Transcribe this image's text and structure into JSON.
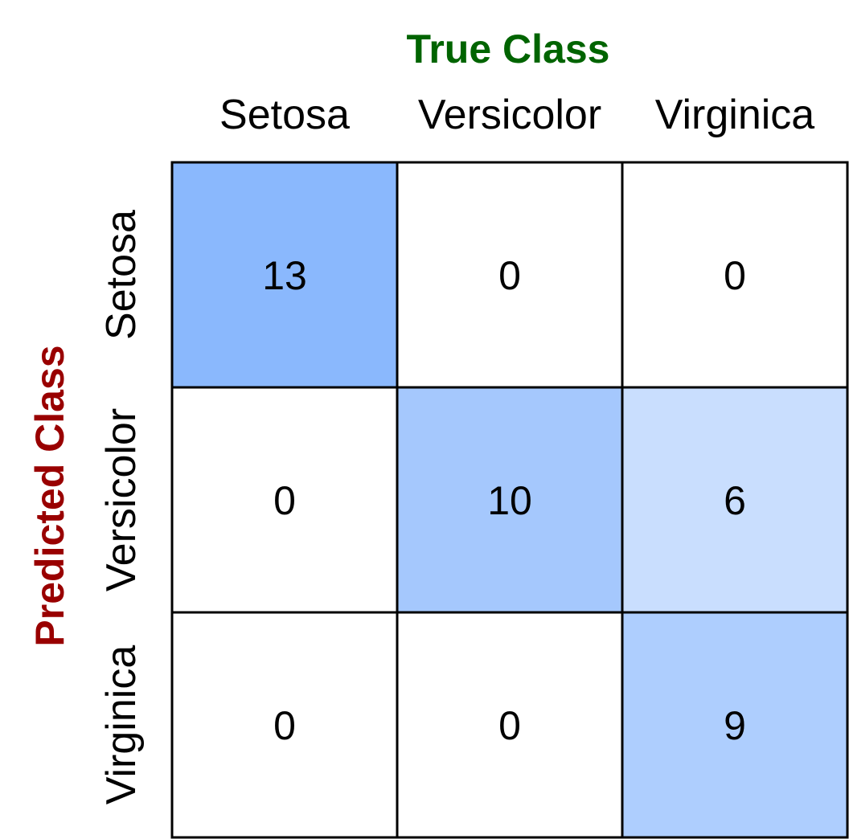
{
  "chart_data": {
    "type": "heatmap",
    "title": "",
    "xlabel": "True Class",
    "ylabel": "Predicted Class",
    "x_categories": [
      "Setosa",
      "Versicolor",
      "Virginica"
    ],
    "y_categories": [
      "Setosa",
      "Versicolor",
      "Virginica"
    ],
    "values": [
      [
        13,
        0,
        0
      ],
      [
        0,
        10,
        6
      ],
      [
        0,
        0,
        9
      ]
    ],
    "colors": {
      "xlabel": "#006400",
      "ylabel": "#990000",
      "scale_low": "#ffffff",
      "scale_high": "#8ab8fd",
      "grid": "#000000"
    }
  }
}
